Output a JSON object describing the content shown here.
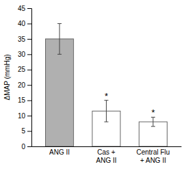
{
  "chart_data": {
    "type": "bar",
    "categories": [
      "ANG II",
      "Cas +\nANG II",
      "Central Flu\n+ ANG II"
    ],
    "values": [
      35.0,
      11.5,
      8.0
    ],
    "errors": [
      5.0,
      3.5,
      1.5
    ],
    "colors": [
      "#b0b0b0",
      "#ffffff",
      "#ffffff"
    ],
    "ylabel": "ΔMAP (mmHg)",
    "ylim": [
      0,
      45
    ],
    "yticks": [
      0,
      5,
      10,
      15,
      20,
      25,
      30,
      35,
      40,
      45
    ],
    "annotations": [
      {
        "text": "*",
        "x": "Cas +\nANG II"
      },
      {
        "text": "*",
        "x": "Central Flu\n+ ANG II"
      }
    ],
    "grid": false
  }
}
